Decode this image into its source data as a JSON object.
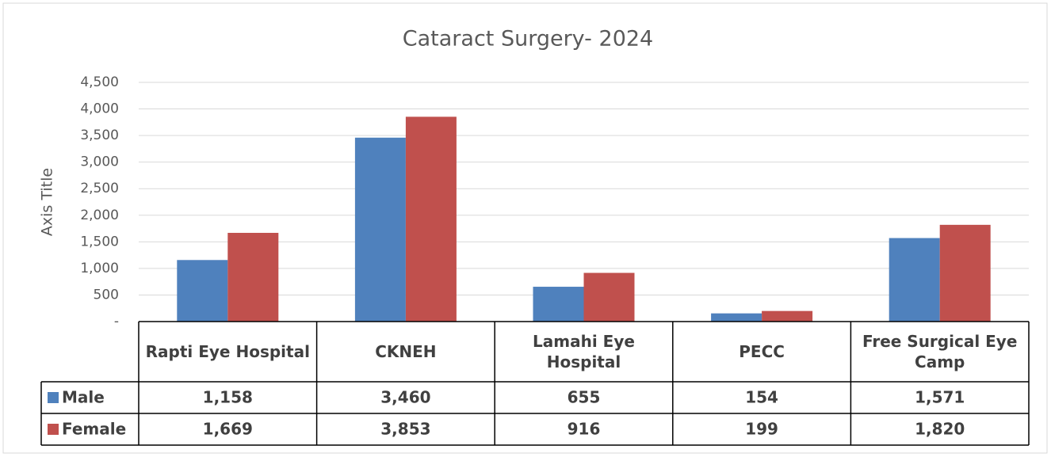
{
  "chart_data": {
    "type": "bar",
    "title": "Cataract Surgery- 2024",
    "y_label": "Axis Title",
    "categories": [
      "Rapti Eye Hospital",
      "CKNEH",
      "Lamahi Eye Hospital",
      "PECC",
      "Free Surgical Eye Camp"
    ],
    "series": [
      {
        "name": "Male",
        "color": "#4f81bd",
        "values": [
          1158,
          3460,
          655,
          154,
          1571
        ],
        "value_labels": [
          "1,158",
          "3,460",
          "655",
          "154",
          "1,571"
        ]
      },
      {
        "name": "Female",
        "color": "#c0504d",
        "values": [
          1669,
          3853,
          916,
          199,
          1820
        ],
        "value_labels": [
          "1,669",
          "3,853",
          "916",
          "199",
          "1,820"
        ]
      }
    ],
    "ylim": [
      0,
      4500
    ],
    "yticks": [
      {
        "value": 0,
        "label": "-"
      },
      500,
      {
        "value": 1000,
        "label": "1,000"
      },
      {
        "value": 1500,
        "label": "1,500"
      },
      {
        "value": 2000,
        "label": "2,000"
      },
      {
        "value": 2500,
        "label": "2,500"
      },
      {
        "value": 3000,
        "label": "3,000"
      },
      {
        "value": 3500,
        "label": "3,500"
      },
      {
        "value": 4000,
        "label": "4,000"
      },
      {
        "value": 4500,
        "label": "4,500"
      }
    ],
    "grid": true,
    "data_table": true
  }
}
